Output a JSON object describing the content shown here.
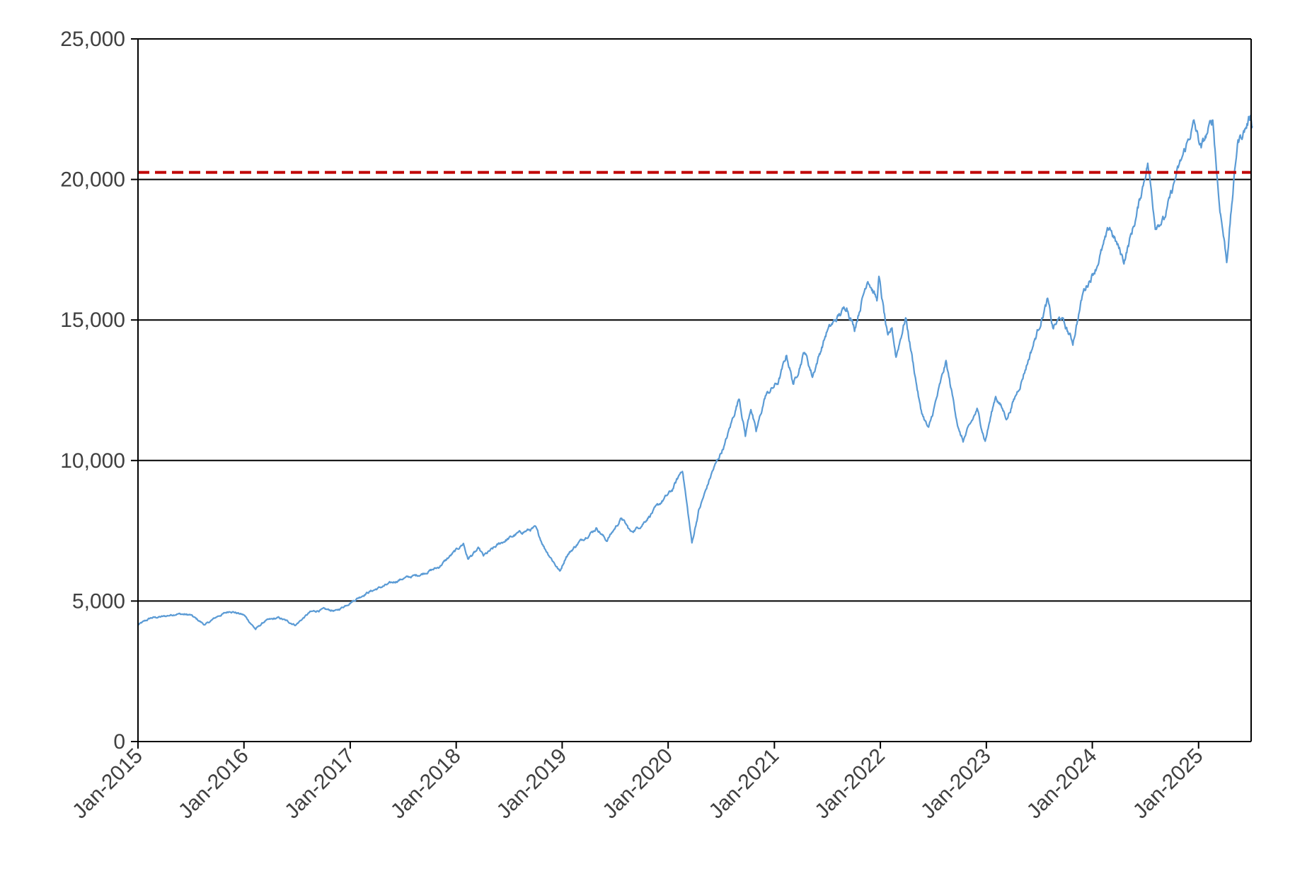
{
  "chart_data": {
    "type": "line",
    "title": "",
    "xlabel": "",
    "ylabel": "",
    "ylim": [
      0,
      25000
    ],
    "xlim": [
      "2015-01",
      "2025-07"
    ],
    "y_ticks": [
      0,
      5000,
      10000,
      15000,
      20000,
      25000
    ],
    "y_tick_labels": [
      "0",
      "5,000",
      "10,000",
      "15,000",
      "20,000",
      "25,000"
    ],
    "x_tick_labels": [
      "Jan-2015",
      "Jan-2016",
      "Jan-2017",
      "Jan-2018",
      "Jan-2019",
      "Jan-2020",
      "Jan-2021",
      "Jan-2022",
      "Jan-2023",
      "Jan-2024",
      "Jan-2025"
    ],
    "grid": "horizontal",
    "legend": "none",
    "series": [
      {
        "color": "#5b9bd5",
        "points": [
          [
            "2015-01-01",
            4150
          ],
          [
            "2015-02-15",
            4400
          ],
          [
            "2015-04-01",
            4450
          ],
          [
            "2015-05-15",
            4550
          ],
          [
            "2015-07-01",
            4500
          ],
          [
            "2015-08-20",
            4150
          ],
          [
            "2015-10-01",
            4450
          ],
          [
            "2015-11-15",
            4650
          ],
          [
            "2016-01-01",
            4500
          ],
          [
            "2016-02-10",
            4000
          ],
          [
            "2016-03-15",
            4300
          ],
          [
            "2016-05-01",
            4400
          ],
          [
            "2016-06-27",
            4150
          ],
          [
            "2016-08-15",
            4600
          ],
          [
            "2016-10-01",
            4700
          ],
          [
            "2016-11-15",
            4650
          ],
          [
            "2017-01-01",
            4950
          ],
          [
            "2017-03-01",
            5300
          ],
          [
            "2017-05-01",
            5550
          ],
          [
            "2017-07-01",
            5800
          ],
          [
            "2017-09-01",
            5950
          ],
          [
            "2017-11-01",
            6200
          ],
          [
            "2018-01-26",
            7050
          ],
          [
            "2018-02-10",
            6500
          ],
          [
            "2018-03-20",
            6850
          ],
          [
            "2018-04-05",
            6600
          ],
          [
            "2018-06-01",
            7050
          ],
          [
            "2018-08-01",
            7400
          ],
          [
            "2018-10-01",
            7600
          ],
          [
            "2018-11-01",
            6900
          ],
          [
            "2018-12-24",
            6050
          ],
          [
            "2019-01-15",
            6600
          ],
          [
            "2019-03-01",
            7100
          ],
          [
            "2019-04-30",
            7600
          ],
          [
            "2019-06-03",
            7150
          ],
          [
            "2019-07-25",
            7950
          ],
          [
            "2019-08-26",
            7450
          ],
          [
            "2019-10-01",
            7700
          ],
          [
            "2019-11-15",
            8250
          ],
          [
            "2020-01-15",
            8950
          ],
          [
            "2020-02-19",
            9700
          ],
          [
            "2020-03-23",
            7050
          ],
          [
            "2020-04-15",
            8200
          ],
          [
            "2020-06-01",
            9600
          ],
          [
            "2020-07-15",
            10600
          ],
          [
            "2020-09-02",
            12250
          ],
          [
            "2020-09-23",
            10900
          ],
          [
            "2020-10-12",
            11900
          ],
          [
            "2020-10-30",
            11000
          ],
          [
            "2020-12-01",
            12300
          ],
          [
            "2021-01-15",
            12800
          ],
          [
            "2021-02-12",
            13750
          ],
          [
            "2021-03-08",
            12700
          ],
          [
            "2021-04-15",
            13900
          ],
          [
            "2021-05-12",
            13000
          ],
          [
            "2021-07-01",
            14600
          ],
          [
            "2021-09-07",
            15500
          ],
          [
            "2021-10-04",
            14700
          ],
          [
            "2021-11-19",
            16500
          ],
          [
            "2021-12-20",
            15700
          ],
          [
            "2021-12-27",
            16500
          ],
          [
            "2022-01-27",
            14300
          ],
          [
            "2022-02-10",
            14700
          ],
          [
            "2022-02-24",
            13700
          ],
          [
            "2022-03-29",
            15100
          ],
          [
            "2022-05-20",
            11800
          ],
          [
            "2022-06-16",
            11100
          ],
          [
            "2022-08-15",
            13500
          ],
          [
            "2022-09-30",
            11000
          ],
          [
            "2022-10-13",
            10700
          ],
          [
            "2022-11-30",
            11800
          ],
          [
            "2022-12-28",
            10700
          ],
          [
            "2023-02-02",
            12300
          ],
          [
            "2023-03-13",
            11500
          ],
          [
            "2023-05-01",
            12800
          ],
          [
            "2023-07-31",
            15700
          ],
          [
            "2023-08-18",
            14700
          ],
          [
            "2023-09-15",
            15100
          ],
          [
            "2023-10-26",
            14200
          ],
          [
            "2023-12-01",
            16000
          ],
          [
            "2024-01-15",
            16900
          ],
          [
            "2024-03-01",
            18300
          ],
          [
            "2024-04-19",
            17100
          ],
          [
            "2024-06-01",
            18700
          ],
          [
            "2024-07-10",
            20600
          ],
          [
            "2024-08-05",
            18400
          ],
          [
            "2024-09-06",
            18600
          ],
          [
            "2024-10-15",
            20100
          ],
          [
            "2024-12-16",
            22000
          ],
          [
            "2025-01-10",
            21100
          ],
          [
            "2025-02-19",
            22150
          ],
          [
            "2025-03-12",
            19300
          ],
          [
            "2025-04-08",
            17100
          ],
          [
            "2025-05-15",
            21300
          ],
          [
            "2025-06-15",
            21900
          ],
          [
            "2025-06-30",
            22300
          ],
          [
            "2025-07-05",
            21900
          ]
        ]
      }
    ],
    "reference_line": {
      "y": 20250,
      "color": "#c00000",
      "style": "dashed"
    },
    "gridline_color": "#000000",
    "tick_label_color": "#404040"
  }
}
